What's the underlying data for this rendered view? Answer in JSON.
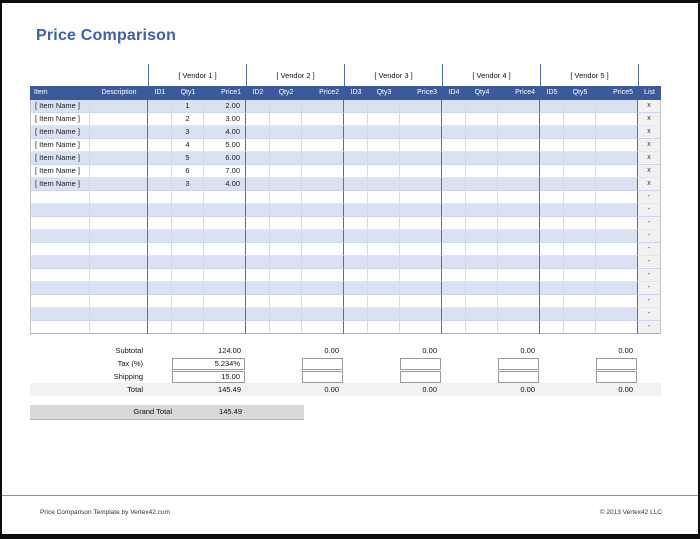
{
  "window": {
    "title": "Price Comparison"
  },
  "table": {
    "vendor_groups": [
      "[ Vendor 1 ]",
      "[ Vendor 2 ]",
      "[ Vendor 3 ]",
      "[ Vendor 4 ]",
      "[ Vendor 5 ]"
    ],
    "columns": [
      "Item",
      "Description",
      "ID1",
      "Qty1",
      "Price1",
      "ID2",
      "Qty2",
      "Price2",
      "ID3",
      "Qty3",
      "Price3",
      "ID4",
      "Qty4",
      "Price4",
      "ID5",
      "Qty5",
      "Price5",
      "List"
    ],
    "rows": [
      {
        "item": "[ Item Name ]",
        "desc": "",
        "vendors": [
          {
            "id": "",
            "qty": "1",
            "price": "2.00"
          },
          {},
          {},
          {},
          {}
        ],
        "list": "x"
      },
      {
        "item": "[ Item Name ]",
        "desc": "",
        "vendors": [
          {
            "id": "",
            "qty": "2",
            "price": "3.00"
          },
          {},
          {},
          {},
          {}
        ],
        "list": "x"
      },
      {
        "item": "[ Item Name ]",
        "desc": "",
        "vendors": [
          {
            "id": "",
            "qty": "3",
            "price": "4.00"
          },
          {},
          {},
          {},
          {}
        ],
        "list": "x"
      },
      {
        "item": "[ Item Name ]",
        "desc": "",
        "vendors": [
          {
            "id": "",
            "qty": "4",
            "price": "5.00"
          },
          {},
          {},
          {},
          {}
        ],
        "list": "x"
      },
      {
        "item": "[ Item Name ]",
        "desc": "",
        "vendors": [
          {
            "id": "",
            "qty": "5",
            "price": "6.00"
          },
          {},
          {},
          {},
          {}
        ],
        "list": "x"
      },
      {
        "item": "[ Item Name ]",
        "desc": "",
        "vendors": [
          {
            "id": "",
            "qty": "6",
            "price": "7.00"
          },
          {},
          {},
          {},
          {}
        ],
        "list": "x"
      },
      {
        "item": "[ Item Name ]",
        "desc": "",
        "vendors": [
          {
            "id": "",
            "qty": "3",
            "price": "4.00"
          },
          {},
          {},
          {},
          {}
        ],
        "list": "x"
      }
    ],
    "empty_rows": {
      "count": 11,
      "list_marker": "-"
    }
  },
  "summary": {
    "row_labels": [
      "Subtotal",
      "Tax (%)",
      "Shipping",
      "Total"
    ],
    "vendors": [
      {
        "subtotal": "124.00",
        "tax": "5.234%",
        "shipping": "15.00",
        "total": "145.49"
      },
      {
        "subtotal": "0.00",
        "tax": "",
        "shipping": "",
        "total": "0.00"
      },
      {
        "subtotal": "0.00",
        "tax": "",
        "shipping": "",
        "total": "0.00"
      },
      {
        "subtotal": "0.00",
        "tax": "",
        "shipping": "",
        "total": "0.00"
      },
      {
        "subtotal": "0.00",
        "tax": "",
        "shipping": "",
        "total": "0.00"
      }
    ]
  },
  "grand_total": {
    "label": "Grand Total",
    "value": "145.49"
  },
  "footer": {
    "left": "Price Comparison Template by Vertex42.com",
    "right": "© 2013 Vertex42 LLC"
  },
  "colors": {
    "title_blue": "#3c5fae",
    "header_bg": "#3a5a9a",
    "band_row": "#d9e1f2",
    "vendor_line": "#4a6fb5",
    "list_col_bg": "#f1f1f1",
    "total_band_bg": "#f2f2f2",
    "grand_total_bg": "#d9d9d9"
  }
}
